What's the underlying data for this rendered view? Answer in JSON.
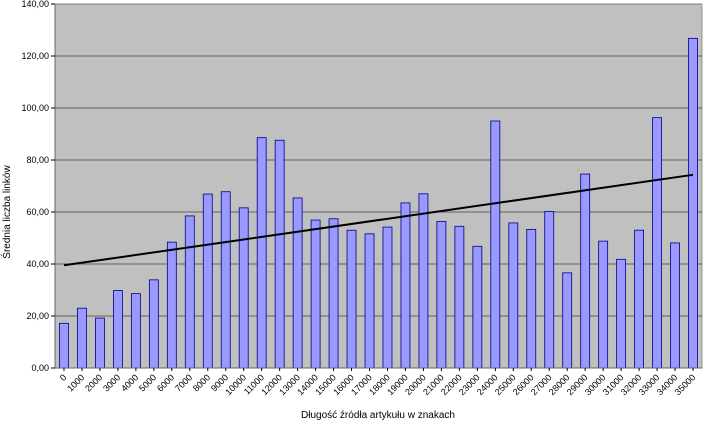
{
  "chart_data": {
    "type": "bar",
    "title": "",
    "xlabel": "Długość źródła artykułu w znakach",
    "ylabel": "Średnia liczba linków",
    "ylim": [
      0,
      140
    ],
    "yticks": [
      "0,00",
      "20,00",
      "40,00",
      "60,00",
      "80,00",
      "100,00",
      "120,00",
      "140,00"
    ],
    "grid": true,
    "legend": "none",
    "categories": [
      "0",
      "1000",
      "2000",
      "3000",
      "4000",
      "5000",
      "6000",
      "7000",
      "8000",
      "9000",
      "10000",
      "11000",
      "12000",
      "13000",
      "14000",
      "15000",
      "16000",
      "17000",
      "18000",
      "19000",
      "20000",
      "21000",
      "22000",
      "23000",
      "24000",
      "25000",
      "26000",
      "27000",
      "28000",
      "29000",
      "30000",
      "31000",
      "32000",
      "33000",
      "34000",
      "35000"
    ],
    "series": [
      {
        "values": [
          17.2,
          23.0,
          19.2,
          29.8,
          28.6,
          33.9,
          48.4,
          58.5,
          66.9,
          67.8,
          61.6,
          88.6,
          87.6,
          65.4,
          56.9,
          57.4,
          53.0,
          51.6,
          54.2,
          63.5,
          67.0,
          56.4,
          54.5,
          46.8,
          95.0,
          55.8,
          53.3,
          60.2,
          36.6,
          74.6,
          48.8,
          41.8,
          53.0,
          96.3,
          48.1,
          126.8
        ]
      }
    ],
    "trendline": {
      "start": 39.5,
      "end": 74.3
    },
    "colors": {
      "plot_background": "#c0c0c0",
      "bar_fill": "#9999ff",
      "bar_stroke": "#000080",
      "trendline": "#000000",
      "gridline": "#000000"
    }
  }
}
